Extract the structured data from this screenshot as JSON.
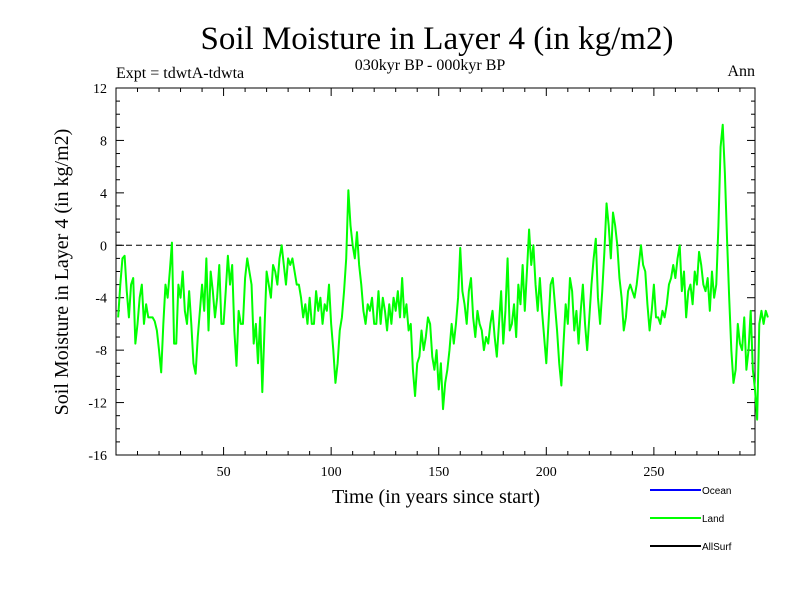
{
  "chart_data": {
    "type": "line",
    "title": "Soil Moisture in Layer 4 (in kg/m2)",
    "subtitle": "030kyr BP - 000kyr BP",
    "expt_label": "Expt = tdwtA-tdwta",
    "season_label": "Ann",
    "xlabel": "Time (in years since start)",
    "ylabel": "Soil Moisture in Layer 4 (in kg/m2)",
    "xlim": [
      0,
      297
    ],
    "ylim": [
      -16,
      12
    ],
    "x_ticks": [
      50,
      100,
      150,
      200,
      250
    ],
    "y_ticks": [
      -16,
      -12,
      -8,
      -4,
      0,
      4,
      8,
      12
    ],
    "reference_line": {
      "y": 0,
      "style": "dashed"
    },
    "legend": [
      {
        "name": "Ocean",
        "color": "#0000ff"
      },
      {
        "name": "Land",
        "color": "#00ff00"
      },
      {
        "name": "AllSurf",
        "color": "#000000"
      }
    ],
    "series": [
      {
        "name": "Land",
        "color": "#00ff00",
        "x_start": 1,
        "x_step": 1,
        "values": [
          -5.5,
          -3.0,
          -1.0,
          -0.8,
          -3.5,
          -5.5,
          -3.0,
          -2.5,
          -7.5,
          -6.0,
          -4.0,
          -3.0,
          -6.0,
          -4.5,
          -5.5,
          -5.5,
          -5.5,
          -5.8,
          -6.5,
          -8.0,
          -9.7,
          -6.0,
          -3.0,
          -4.0,
          -2.0,
          0.2,
          -7.5,
          -7.5,
          -3.0,
          -4.0,
          -2.0,
          -5.0,
          -6.0,
          -3.5,
          -6.0,
          -9.0,
          -9.8,
          -7.0,
          -5.0,
          -3.0,
          -5.0,
          -1.0,
          -6.5,
          -2.0,
          -3.5,
          -5.5,
          -4.0,
          -1.5,
          -6.0,
          -6.0,
          -3.5,
          -0.8,
          -3.0,
          -1.5,
          -6.5,
          -9.2,
          -5.0,
          -6.0,
          -6.0,
          -2.5,
          -1.0,
          -2.0,
          -3.0,
          -7.5,
          -6.0,
          -9.0,
          -5.5,
          -11.2,
          -6.5,
          -2.0,
          -3.0,
          -4.0,
          -1.5,
          -2.0,
          -3.0,
          -1.0,
          0.0,
          -1.5,
          -3.0,
          -1.0,
          -1.5,
          -1.0,
          -2.0,
          -3.0,
          -3.0,
          -4.0,
          -5.5,
          -4.5,
          -6.0,
          -4.0,
          -6.0,
          -6.0,
          -3.5,
          -5.0,
          -4.0,
          -6.0,
          -4.5,
          -5.0,
          -3.0,
          -6.0,
          -8.0,
          -10.5,
          -9.0,
          -6.5,
          -5.5,
          -3.5,
          -1.0,
          4.2,
          1.5,
          0.0,
          -1.0,
          1.0,
          -1.5,
          -3.0,
          -5.0,
          -6.0,
          -4.5,
          -5.0,
          -4.0,
          -6.0,
          -6.0,
          -3.5,
          -6.0,
          -4.0,
          -5.0,
          -6.5,
          -4.5,
          -6.0,
          -4.0,
          -5.0,
          -3.5,
          -5.5,
          -2.5,
          -5.5,
          -4.5,
          -6.5,
          -6.0,
          -9.5,
          -11.5,
          -9.0,
          -8.5,
          -6.5,
          -8.0,
          -7.0,
          -5.5,
          -6.0,
          -8.5,
          -9.5,
          -8.0,
          -11.0,
          -9.0,
          -12.5,
          -10.5,
          -9.5,
          -8.0,
          -6.0,
          -7.5,
          -6.0,
          -4.0,
          -0.2,
          -3.5,
          -4.5,
          -6.0,
          -3.5,
          -2.5,
          -5.5,
          -7.0,
          -5.0,
          -6.0,
          -6.5,
          -8.0,
          -7.0,
          -7.5,
          -6.0,
          -5.0,
          -7.0,
          -8.5,
          -6.0,
          -3.5,
          -7.5,
          -5.0,
          -1.0,
          -6.5,
          -6.0,
          -4.5,
          -7.0,
          -3.0,
          -4.5,
          -1.5,
          -5.0,
          -2.0,
          1.2,
          -1.5,
          0.0,
          -3.0,
          -5.0,
          -2.5,
          -5.0,
          -7.0,
          -9.0,
          -6.0,
          -3.0,
          -2.5,
          -4.5,
          -6.5,
          -9.0,
          -10.7,
          -7.5,
          -4.5,
          -6.0,
          -2.5,
          -3.5,
          -6.5,
          -5.0,
          -7.5,
          -5.0,
          -3.0,
          -6.0,
          -8.0,
          -5.5,
          -3.0,
          -1.0,
          0.5,
          -4.0,
          -6.0,
          -3.5,
          -0.5,
          3.2,
          1.5,
          -1.0,
          2.5,
          1.5,
          0.0,
          -2.5,
          -4.0,
          -6.5,
          -5.5,
          -3.5,
          -3.0,
          -3.5,
          -4.0,
          -3.0,
          -1.5,
          0.0,
          -1.5,
          -2.0,
          -4.5,
          -6.5,
          -5.0,
          -3.0,
          -5.5,
          -5.5,
          -6.0,
          -5.0,
          -5.5,
          -4.5,
          -3.0,
          -2.5,
          -1.5,
          -2.5,
          -1.0,
          0.0,
          -3.5,
          -2.0,
          -5.5,
          -3.5,
          -3.0,
          -4.5,
          -2.0,
          -3.0,
          -0.5,
          -1.5,
          -3.0,
          -3.5,
          -2.5,
          -5.0,
          -2.0,
          -4.0,
          -3.0,
          1.5,
          7.5,
          9.2,
          5.5,
          0.5,
          -4.0,
          -8.0,
          -10.5,
          -9.5,
          -6.0,
          -7.5,
          -8.0,
          -5.5,
          -9.5,
          -8.0,
          -5.0,
          -9.5,
          -11.0,
          -13.3,
          -6.0,
          -5.0,
          -6.0,
          -5.0,
          -5.5
        ]
      }
    ]
  }
}
